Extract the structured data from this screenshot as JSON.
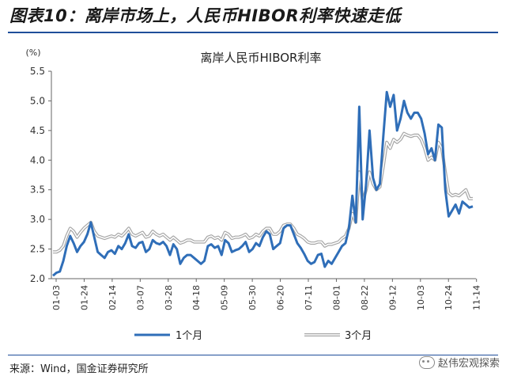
{
  "figure_title": "图表10：离岸市场上，人民币HIBOR利率快速走低",
  "source": "来源：Wind，国金证券研究所",
  "watermark": "赵伟宏观探索",
  "colors": {
    "series1": "#2f6eb8",
    "series2_outer": "#a6a6a6",
    "series2_inner": "#ffffff",
    "axis": "#666666"
  },
  "chart_data": {
    "type": "line",
    "title": "离岸人民币HIBOR利率",
    "ylabel": "(%)",
    "xlabel": "",
    "ylim": [
      2.0,
      5.5
    ],
    "yticks": [
      2.0,
      2.5,
      3.0,
      3.5,
      4.0,
      4.5,
      5.0,
      5.5
    ],
    "ytick_labels": [
      "2.0",
      "2.5",
      "3.0",
      "3.5",
      "4.0",
      "4.5",
      "5.0",
      "5.5"
    ],
    "xtick_labels": [
      "01-03",
      "01-24",
      "02-14",
      "03-07",
      "03-28",
      "04-18",
      "05-09",
      "05-30",
      "06-20",
      "07-11",
      "08-01",
      "08-22",
      "09-12",
      "10-03",
      "10-24",
      "11-14"
    ],
    "grid": false,
    "legend_position": "bottom",
    "series": [
      {
        "name": "1个月",
        "style": "solid-blue",
        "values": [
          2.05,
          2.1,
          2.12,
          2.3,
          2.55,
          2.72,
          2.6,
          2.45,
          2.55,
          2.62,
          2.75,
          2.95,
          2.7,
          2.45,
          2.4,
          2.35,
          2.45,
          2.48,
          2.42,
          2.55,
          2.5,
          2.6,
          2.75,
          2.55,
          2.52,
          2.6,
          2.62,
          2.45,
          2.5,
          2.65,
          2.6,
          2.58,
          2.62,
          2.55,
          2.4,
          2.58,
          2.5,
          2.25,
          2.35,
          2.4,
          2.4,
          2.35,
          2.3,
          2.25,
          2.3,
          2.55,
          2.58,
          2.52,
          2.55,
          2.4,
          2.65,
          2.6,
          2.45,
          2.48,
          2.5,
          2.55,
          2.62,
          2.45,
          2.5,
          2.6,
          2.55,
          2.7,
          2.8,
          2.75,
          2.5,
          2.55,
          2.6,
          2.85,
          2.9,
          2.9,
          2.75,
          2.6,
          2.52,
          2.42,
          2.3,
          2.25,
          2.28,
          2.4,
          2.42,
          2.2,
          2.3,
          2.25,
          2.35,
          2.45,
          2.55,
          2.6,
          2.85,
          3.4,
          2.95,
          4.9,
          3.0,
          3.6,
          4.5,
          3.7,
          3.5,
          3.6,
          4.4,
          5.15,
          4.9,
          5.1,
          4.5,
          4.7,
          5.0,
          4.8,
          4.7,
          4.8,
          4.8,
          4.7,
          4.45,
          4.1,
          4.2,
          4.0,
          4.6,
          4.55,
          3.5,
          3.05,
          3.15,
          3.25,
          3.1,
          3.3,
          3.25,
          3.2,
          3.22
        ]
      },
      {
        "name": "3个月",
        "style": "double-grey",
        "values": [
          2.45,
          2.45,
          2.48,
          2.55,
          2.72,
          2.85,
          2.8,
          2.7,
          2.78,
          2.85,
          2.9,
          2.95,
          2.8,
          2.72,
          2.7,
          2.68,
          2.7,
          2.72,
          2.7,
          2.75,
          2.72,
          2.78,
          2.85,
          2.75,
          2.72,
          2.75,
          2.78,
          2.7,
          2.72,
          2.8,
          2.75,
          2.72,
          2.75,
          2.7,
          2.65,
          2.7,
          2.65,
          2.6,
          2.62,
          2.65,
          2.65,
          2.62,
          2.62,
          2.62,
          2.62,
          2.7,
          2.72,
          2.68,
          2.7,
          2.65,
          2.78,
          2.75,
          2.68,
          2.7,
          2.7,
          2.72,
          2.75,
          2.68,
          2.7,
          2.75,
          2.72,
          2.8,
          2.85,
          2.85,
          2.75,
          2.75,
          2.8,
          2.9,
          2.92,
          2.92,
          2.85,
          2.75,
          2.72,
          2.68,
          2.62,
          2.6,
          2.6,
          2.62,
          2.62,
          2.55,
          2.58,
          2.58,
          2.6,
          2.62,
          2.68,
          2.72,
          2.85,
          3.1,
          2.95,
          3.8,
          3.3,
          3.5,
          3.8,
          3.6,
          3.5,
          3.55,
          3.9,
          4.3,
          4.2,
          4.35,
          4.3,
          4.35,
          4.45,
          4.42,
          4.4,
          4.42,
          4.42,
          4.35,
          4.2,
          4.0,
          4.05,
          4.0,
          4.3,
          4.2,
          3.8,
          3.45,
          3.4,
          3.42,
          3.4,
          3.45,
          3.5,
          3.35,
          3.35
        ]
      }
    ]
  }
}
